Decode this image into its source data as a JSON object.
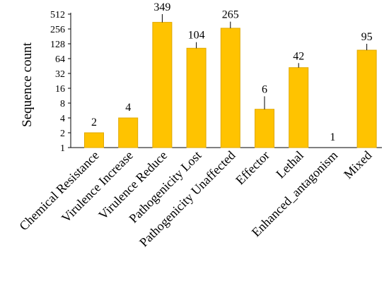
{
  "chart_data": {
    "type": "bar",
    "scale": "log2",
    "ylabel": "Sequence count",
    "xlabel": "",
    "title": "",
    "ylim": [
      1,
      512
    ],
    "yticks": [
      "1",
      "2",
      "4",
      "8",
      "16",
      "32",
      "64",
      "128",
      "256",
      "512"
    ],
    "ytick_values": [
      1,
      2,
      4,
      8,
      16,
      32,
      64,
      128,
      256,
      512
    ],
    "categories": [
      "Chemical Resistance",
      "Virulence Increase",
      "Virulence Reduce",
      "Pathogenicity Lost",
      "Pathogenicity Unaffected",
      "Effector",
      "Lethal",
      "Enhanced_antagonism",
      "Mixed"
    ],
    "values": [
      2,
      4,
      349,
      104,
      265,
      6,
      42,
      1,
      95
    ],
    "value_labels": [
      "2",
      "4",
      "349",
      "104",
      "265",
      "6",
      "42",
      "1",
      "95"
    ],
    "error_tops": [
      null,
      null,
      512,
      138,
      360,
      11,
      52,
      null,
      128
    ],
    "bar_color": "#FFC300",
    "bar_edge_color": "#E0A800",
    "grid": false,
    "legend": "none"
  }
}
